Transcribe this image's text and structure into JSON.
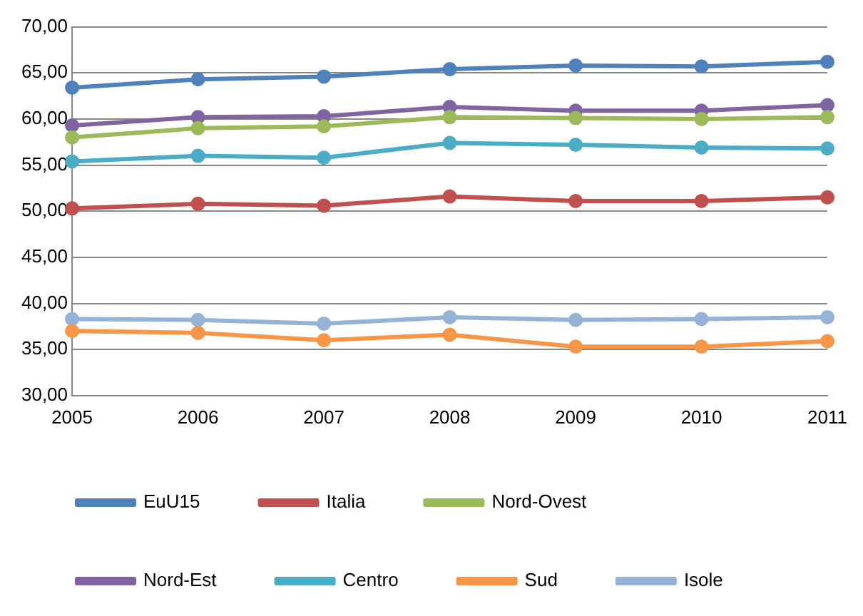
{
  "chart_data": {
    "type": "line",
    "categories": [
      "2005",
      "2006",
      "2007",
      "2008",
      "2009",
      "2010",
      "2011"
    ],
    "ylim": [
      30,
      70
    ],
    "yticks": [
      {
        "value": 30,
        "label": "30,00"
      },
      {
        "value": 35,
        "label": "35,00"
      },
      {
        "value": 40,
        "label": "40,00"
      },
      {
        "value": 45,
        "label": "45,00"
      },
      {
        "value": 50,
        "label": "50,00"
      },
      {
        "value": 55,
        "label": "55,00"
      },
      {
        "value": 60,
        "label": "60,00"
      },
      {
        "value": 65,
        "label": "65,00"
      },
      {
        "value": 70,
        "label": "70,00"
      }
    ],
    "grid": "y",
    "legend": "bottom",
    "marker": "circle",
    "line_style": "solid",
    "series": [
      {
        "name": "EuU15",
        "color": "#4f81bd",
        "values": [
          63.4,
          64.3,
          64.6,
          65.4,
          65.8,
          65.7,
          66.2
        ]
      },
      {
        "name": "Italia",
        "color": "#c0504d",
        "values": [
          50.3,
          50.8,
          50.6,
          51.6,
          51.1,
          51.1,
          51.5
        ]
      },
      {
        "name": "Nord-Ovest",
        "color": "#9bbb59",
        "values": [
          58.0,
          59.0,
          59.2,
          60.2,
          60.1,
          60.0,
          60.2
        ]
      },
      {
        "name": "Nord-Est",
        "color": "#8064a2",
        "values": [
          59.3,
          60.2,
          60.3,
          61.3,
          60.9,
          60.9,
          61.5
        ]
      },
      {
        "name": "Centro",
        "color": "#4bacc6",
        "values": [
          55.4,
          56.0,
          55.8,
          57.4,
          57.2,
          56.9,
          56.8
        ]
      },
      {
        "name": "Sud",
        "color": "#f79646",
        "values": [
          37.0,
          36.8,
          36.0,
          36.6,
          35.3,
          35.3,
          35.9
        ]
      },
      {
        "name": "Isole",
        "color": "#95b3d7",
        "values": [
          38.3,
          38.2,
          37.8,
          38.5,
          38.2,
          38.3,
          38.5
        ]
      }
    ]
  }
}
